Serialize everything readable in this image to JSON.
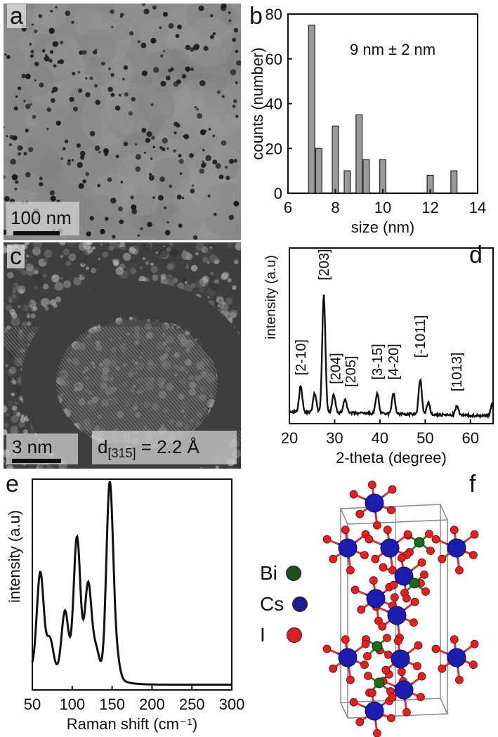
{
  "panels": {
    "a": {
      "label": "a",
      "scale_bar": "100 nm"
    },
    "b": {
      "label": "b",
      "annotation": "9 nm ± 2 nm"
    },
    "c": {
      "label": "c",
      "scale_bar": "3 nm",
      "d_spacing_prefix": "d",
      "d_spacing_sub": "[315]",
      "d_spacing_value": " = 2.2 Å"
    },
    "d": {
      "label": "d"
    },
    "e": {
      "label": "e"
    },
    "f": {
      "label": "f",
      "legend": [
        {
          "name": "Bi",
          "color": "#1e4d1e"
        },
        {
          "name": "Cs",
          "color": "#1c1c8a"
        },
        {
          "name": "I",
          "color": "#d42020"
        }
      ]
    }
  },
  "chart_data": [
    {
      "id": "b",
      "type": "bar",
      "title": "",
      "xlabel": "size (nm)",
      "ylabel": "counts (number)",
      "xlim": [
        6,
        14
      ],
      "ylim": [
        0,
        80
      ],
      "xticks": [
        "6",
        "8",
        "10",
        "12",
        "14"
      ],
      "yticks": [
        "0",
        "20",
        "40",
        "60",
        "80"
      ],
      "x": [
        7,
        7.3,
        8,
        8.5,
        9,
        9.3,
        10,
        12,
        13
      ],
      "values": [
        75,
        20,
        30,
        10,
        35,
        15,
        15,
        8,
        10
      ],
      "bar_color": "#9a9a9a"
    },
    {
      "id": "d",
      "type": "line",
      "xlabel": "2-theta (degree)",
      "ylabel": "intensity (a.u)",
      "xlim": [
        20,
        65
      ],
      "ylim": [
        0,
        100
      ],
      "xticks": [
        "20",
        "30",
        "40",
        "50",
        "60"
      ],
      "peaks": [
        [
          22.5,
          18
        ],
        [
          25.6,
          13
        ],
        [
          27.6,
          80
        ],
        [
          29.8,
          12
        ],
        [
          32.3,
          10
        ],
        [
          39.4,
          14
        ],
        [
          43.0,
          14
        ],
        [
          48.9,
          24
        ],
        [
          50.7,
          8
        ],
        [
          57.0,
          6
        ],
        [
          64.8,
          8
        ]
      ],
      "peak_labels": [
        {
          "text": "[2-10]",
          "x": 22.5,
          "y": 33
        },
        {
          "text": "[203]",
          "x": 27.6,
          "y": 98
        },
        {
          "text": "[204]",
          "x": 30.2,
          "y": 27
        },
        {
          "text": "[205]",
          "x": 33.5,
          "y": 25
        },
        {
          "text": "[3-15]",
          "x": 39.4,
          "y": 30
        },
        {
          "text": "[4-20]",
          "x": 43.0,
          "y": 30
        },
        {
          "text": "[-1011]",
          "x": 48.9,
          "y": 45
        },
        {
          "text": "[1013]",
          "x": 56.9,
          "y": 22
        }
      ]
    },
    {
      "id": "e",
      "type": "line",
      "xlabel": "Raman shift (cm⁻¹)",
      "ylabel": "intensity (a.u)",
      "xlim": [
        50,
        300
      ],
      "ylim": [
        0,
        100
      ],
      "xticks": [
        "50",
        "100",
        "150",
        "200",
        "250",
        "300"
      ],
      "peaks": [
        [
          60,
          55
        ],
        [
          72,
          18
        ],
        [
          91,
          35
        ],
        [
          106,
          78
        ],
        [
          120,
          52
        ],
        [
          130,
          15
        ],
        [
          147,
          110
        ],
        [
          155,
          12
        ]
      ]
    }
  ]
}
